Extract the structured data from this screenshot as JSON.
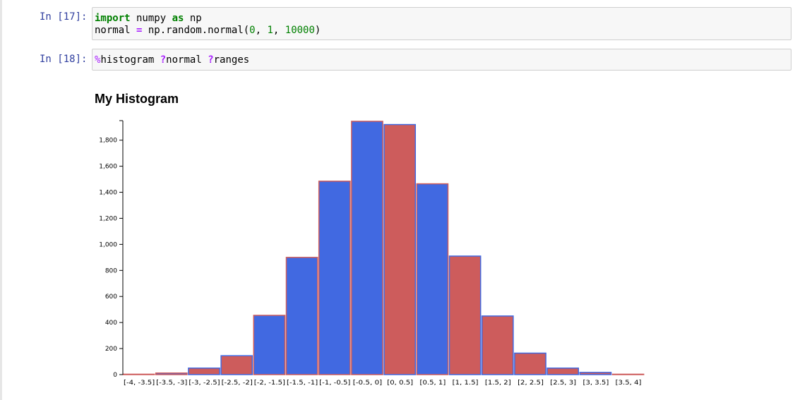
{
  "cells": [
    {
      "prompt": "In [17]:",
      "code": {
        "line1": {
          "t1": "import",
          "t2": " numpy ",
          "t3": "as",
          "t4": " np"
        },
        "line2": {
          "t1": "normal ",
          "t2": "=",
          "t3": " np.random.normal(",
          "t4": "0",
          "t5": ", ",
          "t6": "1",
          "t7": ", ",
          "t8": "10000",
          "t9": ")"
        }
      }
    },
    {
      "prompt": "In [18]:",
      "code": {
        "t1": "%",
        "t2": "histogram ",
        "t3": "?",
        "t4": "normal ",
        "t5": "?",
        "t6": "ranges"
      }
    }
  ],
  "chart_data": {
    "type": "bar",
    "title": "My Histogram",
    "categories": [
      "[-4, -3.5]",
      "[-3.5, -3]",
      "[-3, -2.5]",
      "[-2.5, -2]",
      "[-2, -1.5]",
      "[-1.5, -1]",
      "[-1, -0.5]",
      "[-0.5, 0]",
      "[0, 0.5]",
      "[0.5, 1]",
      "[1, 1.5]",
      "[1.5, 2]",
      "[2, 2.5]",
      "[2.5, 3]",
      "[3, 3.5]",
      "[3.5, 4]"
    ],
    "values": [
      3,
      12,
      50,
      145,
      455,
      900,
      1485,
      1945,
      1920,
      1465,
      910,
      450,
      165,
      50,
      17,
      3
    ],
    "yticks": [
      0,
      200,
      400,
      600,
      800,
      1000,
      1200,
      1400,
      1600,
      1800
    ],
    "ytick_labels": [
      "0",
      "200",
      "400",
      "600",
      "800",
      "1,000",
      "1,200",
      "1,400",
      "1,600",
      "1,800"
    ],
    "ylim": [
      0,
      1950
    ],
    "grid": false,
    "colors": {
      "blue": "#4169e1",
      "red": "#cd5c5c"
    }
  }
}
